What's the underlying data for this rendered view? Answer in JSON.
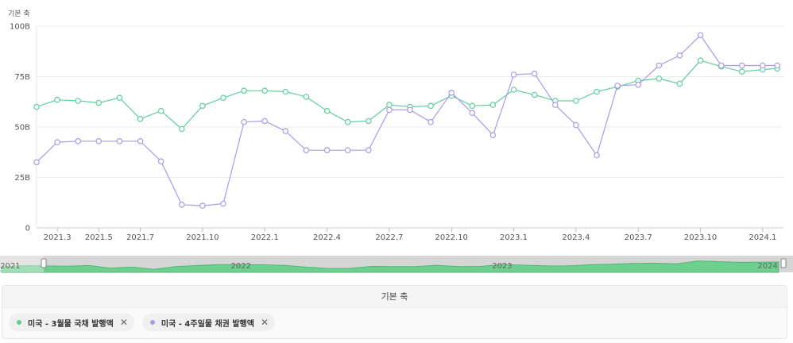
{
  "chart_data": {
    "type": "line",
    "yaxis_title": "기본 축",
    "yticks": [
      "0",
      "25B",
      "50B",
      "75B",
      "100B"
    ],
    "ylim": [
      0,
      100
    ],
    "xlim": [
      0,
      36
    ],
    "x_ticks": [
      {
        "label": "2021.3",
        "x": 1
      },
      {
        "label": "2021.5",
        "x": 3
      },
      {
        "label": "2021.7",
        "x": 5
      },
      {
        "label": "2021.10",
        "x": 8
      },
      {
        "label": "2022.1",
        "x": 11
      },
      {
        "label": "2022.4",
        "x": 14
      },
      {
        "label": "2022.7",
        "x": 17
      },
      {
        "label": "2022.10",
        "x": 20
      },
      {
        "label": "2023.1",
        "x": 23
      },
      {
        "label": "2023.4",
        "x": 26
      },
      {
        "label": "2023.7",
        "x": 29
      },
      {
        "label": "2023.10",
        "x": 32
      },
      {
        "label": "2024.1",
        "x": 35
      }
    ],
    "series": [
      {
        "name": "미국 - 3월물 국채 발행액",
        "color": "#5fcf9d",
        "points": [
          [
            0,
            60
          ],
          [
            1,
            63.5
          ],
          [
            2,
            63
          ],
          [
            3,
            62
          ],
          [
            4,
            64.5
          ],
          [
            5,
            54
          ],
          [
            6,
            58
          ],
          [
            7,
            49
          ],
          [
            8,
            60.5
          ],
          [
            9,
            64.5
          ],
          [
            10,
            68
          ],
          [
            11,
            68
          ],
          [
            12,
            67.5
          ],
          [
            13,
            65
          ],
          [
            14,
            58
          ],
          [
            15,
            52.5
          ],
          [
            16,
            53
          ],
          [
            17,
            61
          ],
          [
            18,
            60
          ],
          [
            19,
            60.5
          ],
          [
            20,
            65.5
          ],
          [
            21,
            60.5
          ],
          [
            22,
            61
          ],
          [
            23,
            68.5
          ],
          [
            24,
            66
          ],
          [
            25,
            63
          ],
          [
            26,
            63
          ],
          [
            27,
            67.5
          ],
          [
            28,
            70
          ],
          [
            29,
            73
          ],
          [
            30,
            74
          ],
          [
            31,
            71.5
          ],
          [
            32,
            83
          ],
          [
            33,
            80
          ],
          [
            34,
            77.5
          ],
          [
            35,
            78.5
          ],
          [
            35.7,
            79
          ]
        ]
      },
      {
        "name": "미국 - 4주일물 채권 발행액",
        "color": "#a99be8",
        "points": [
          [
            0,
            32.5
          ],
          [
            1,
            42.5
          ],
          [
            2,
            43
          ],
          [
            3,
            43
          ],
          [
            4,
            43
          ],
          [
            5,
            43
          ],
          [
            6,
            33
          ],
          [
            7,
            11.5
          ],
          [
            8,
            11
          ],
          [
            9,
            12
          ],
          [
            10,
            52.5
          ],
          [
            11,
            53
          ],
          [
            12,
            48
          ],
          [
            13,
            38.5
          ],
          [
            14,
            38.5
          ],
          [
            15,
            38.5
          ],
          [
            16,
            38.5
          ],
          [
            17,
            58.5
          ],
          [
            18,
            58.5
          ],
          [
            19,
            52.5
          ],
          [
            20,
            67
          ],
          [
            21,
            57
          ],
          [
            22,
            46
          ],
          [
            23,
            76
          ],
          [
            24,
            76.5
          ],
          [
            25,
            61
          ],
          [
            26,
            51
          ],
          [
            27,
            36
          ],
          [
            28,
            70.5
          ],
          [
            29,
            71
          ],
          [
            30,
            80.5
          ],
          [
            31,
            85.5
          ],
          [
            32,
            95.5
          ],
          [
            33,
            80.5
          ],
          [
            34,
            80.5
          ],
          [
            35,
            80.5
          ],
          [
            35.7,
            80.5
          ]
        ]
      }
    ],
    "navigator": {
      "years": [
        {
          "label": "2021",
          "x": 0.4
        },
        {
          "label": "2022",
          "x": 11
        },
        {
          "label": "2023",
          "x": 23
        },
        {
          "label": "2024",
          "x": 35.2
        }
      ]
    }
  },
  "legend": {
    "header": "기본 축",
    "items": [
      {
        "label": "미국 - 3월물 국채 발행액",
        "color": "#5fcf9d",
        "close": "✕"
      },
      {
        "label": "미국 - 4주일물 채권 발행액",
        "color": "#a99be8",
        "close": "✕"
      }
    ]
  }
}
